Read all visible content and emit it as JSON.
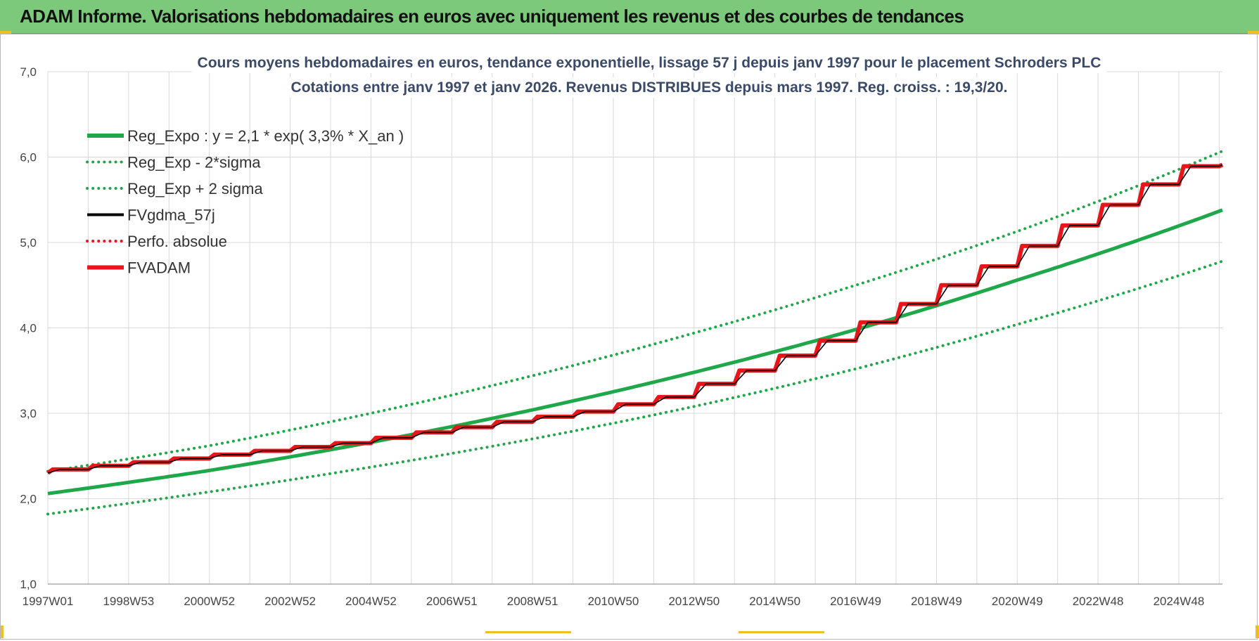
{
  "banner": {
    "title": "ADAM Informe. Valorisations hebdomadaires en euros avec uniquement les revenus et des courbes de tendances"
  },
  "colors": {
    "banner_bg": "#7dc97b",
    "trend_green": "#1fa84a",
    "band_green": "#1fa84a",
    "gdma_black": "#000000",
    "fvadam_red": "#e8161b",
    "perfo_red": "#e8161b",
    "grid": "#d9d9d9"
  },
  "chart_data": {
    "type": "line",
    "title_lines": [
      "Cours moyens hebdomadaires en euros, tendance exponentielle, lissage 57 j depuis janv 1997 pour le placement Schroders PLC",
      "Cotations entre janv 1997 et janv 2026. Revenus DISTRIBUES depuis mars 1997. Reg. croiss. : 19,3/20."
    ],
    "x_range": [
      1997.0,
      2026.08
    ],
    "x_ticks": [
      {
        "label": "1997W01",
        "x": 1997.0
      },
      {
        "label": "1998W53",
        "x": 1999.0
      },
      {
        "label": "2000W52",
        "x": 2001.0
      },
      {
        "label": "2002W52",
        "x": 2003.0
      },
      {
        "label": "2004W52",
        "x": 2005.0
      },
      {
        "label": "2006W51",
        "x": 2007.0
      },
      {
        "label": "2008W51",
        "x": 2009.0
      },
      {
        "label": "2010W50",
        "x": 2011.0
      },
      {
        "label": "2012W50",
        "x": 2013.0
      },
      {
        "label": "2014W50",
        "x": 2015.0
      },
      {
        "label": "2016W49",
        "x": 2017.0
      },
      {
        "label": "2018W49",
        "x": 2019.0
      },
      {
        "label": "2020W49",
        "x": 2021.0
      },
      {
        "label": "2022W48",
        "x": 2023.0
      },
      {
        "label": "2024W48",
        "x": 2025.0
      }
    ],
    "y_range": [
      1.0,
      7.0
    ],
    "y_ticks": [
      {
        "label": "7,0",
        "v": 7.0
      },
      {
        "label": "6,0",
        "v": 6.0
      },
      {
        "label": "5,0",
        "v": 5.0
      },
      {
        "label": "4,0",
        "v": 4.0
      },
      {
        "label": "3,0",
        "v": 3.0
      },
      {
        "label": "2,0",
        "v": 2.0
      },
      {
        "label": "1,0",
        "v": 1.0
      }
    ],
    "grid": true,
    "legend_position": "top-left",
    "legend": [
      {
        "label": "Reg_Expo : y = 2,1 * exp( 3,3% *  X_an )",
        "style": "solid",
        "color": "#1fa84a"
      },
      {
        "label": "Reg_Exp - 2*sigma",
        "style": "dotted",
        "color": "#1fa84a"
      },
      {
        "label": "Reg_Exp + 2 sigma",
        "style": "dotted",
        "color": "#1fa84a"
      },
      {
        "label": "FVgdma_57j",
        "style": "solid",
        "color": "#000000"
      },
      {
        "label": "Perfo. absolue",
        "style": "dotted",
        "color": "#e8161b"
      },
      {
        "label": "FVADAM",
        "style": "solid",
        "color": "#e8161b"
      }
    ],
    "series": [
      {
        "name": "Reg_Expo : y = 2,1 * exp( 3,3% *  X_an )",
        "x": [
          1997.0,
          2001.0,
          2005.0,
          2009.0,
          2013.0,
          2017.0,
          2021.0,
          2026.08
        ],
        "y": [
          2.06,
          2.33,
          2.66,
          3.04,
          3.48,
          3.98,
          4.56,
          5.38
        ]
      },
      {
        "name": "Reg_Exp - 2*sigma",
        "x": [
          1997.0,
          2001.0,
          2005.0,
          2009.0,
          2013.0,
          2017.0,
          2021.0,
          2026.08
        ],
        "y": [
          1.82,
          2.08,
          2.37,
          2.7,
          3.08,
          3.52,
          4.04,
          4.78
        ]
      },
      {
        "name": "Reg_Exp + 2 sigma",
        "x": [
          1997.0,
          2001.0,
          2005.0,
          2009.0,
          2013.0,
          2017.0,
          2021.0,
          2026.08
        ],
        "y": [
          2.32,
          2.62,
          3.0,
          3.44,
          3.94,
          4.5,
          5.13,
          6.07
        ]
      },
      {
        "name": "FVADAM",
        "x": [
          1997.0,
          2001.0,
          2005.0,
          2009.0,
          2011.0,
          2013.0,
          2015.0,
          2017.0,
          2019.0,
          2021.0,
          2023.0,
          2025.0,
          2026.08
        ],
        "y": [
          2.3,
          2.47,
          2.65,
          2.9,
          3.02,
          3.19,
          3.5,
          3.85,
          4.28,
          4.72,
          5.2,
          5.68,
          5.91
        ]
      },
      {
        "name": "FVgdma_57j",
        "x": [
          1997.0,
          2001.0,
          2005.0,
          2009.0,
          2011.0,
          2013.0,
          2015.0,
          2017.0,
          2019.0,
          2021.0,
          2023.0,
          2025.0,
          2026.08
        ],
        "y": [
          2.3,
          2.47,
          2.65,
          2.9,
          3.02,
          3.19,
          3.5,
          3.85,
          4.28,
          4.72,
          5.2,
          5.68,
          5.91
        ]
      }
    ]
  }
}
